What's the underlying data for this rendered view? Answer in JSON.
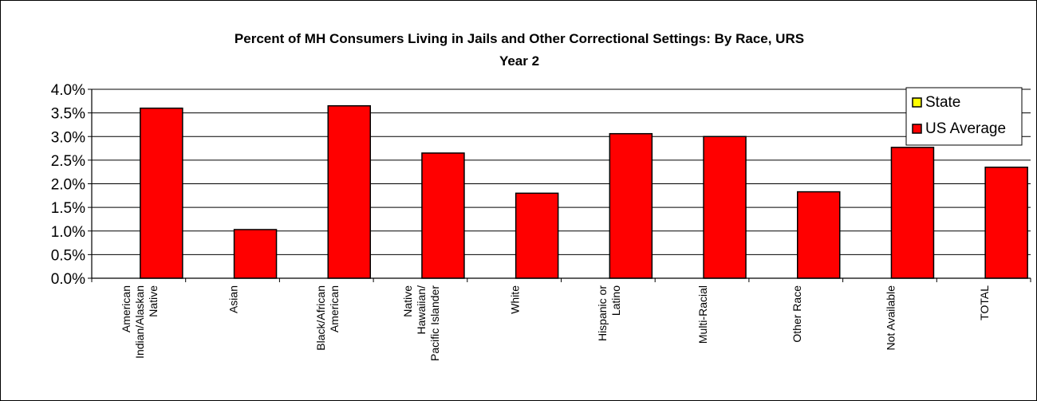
{
  "chart_data": {
    "type": "bar",
    "title_lines": [
      "Percent of MH Consumers Living in Jails and Other Correctional Settings: By Race, URS",
      "Year 2"
    ],
    "categories": [
      [
        "American",
        "Indian/Alaskan",
        "Native"
      ],
      [
        "Asian"
      ],
      [
        "Black/African",
        "American"
      ],
      [
        "Native",
        "Hawaiian/",
        "Pacific Islander"
      ],
      [
        "White"
      ],
      [
        "Hispanic or",
        "Latino"
      ],
      [
        "Multi-Racial"
      ],
      [
        "Other Race"
      ],
      [
        "Not Available"
      ],
      [
        "TOTAL"
      ]
    ],
    "series": [
      {
        "name": "State",
        "color": "#ffff00",
        "values": [
          null,
          null,
          null,
          null,
          null,
          null,
          null,
          null,
          null,
          null
        ]
      },
      {
        "name": "US Average",
        "color": "#ff0000",
        "values": [
          3.6,
          1.03,
          3.65,
          2.65,
          1.8,
          3.06,
          3.0,
          1.83,
          2.77,
          2.35
        ]
      }
    ],
    "y_ticks": [
      "0.0%",
      "0.5%",
      "1.0%",
      "1.5%",
      "2.0%",
      "2.5%",
      "3.0%",
      "3.5%",
      "4.0%"
    ],
    "ylim": [
      0,
      4.0
    ],
    "y_unit": "%",
    "gridlines": true,
    "legend_position": "top-right"
  }
}
